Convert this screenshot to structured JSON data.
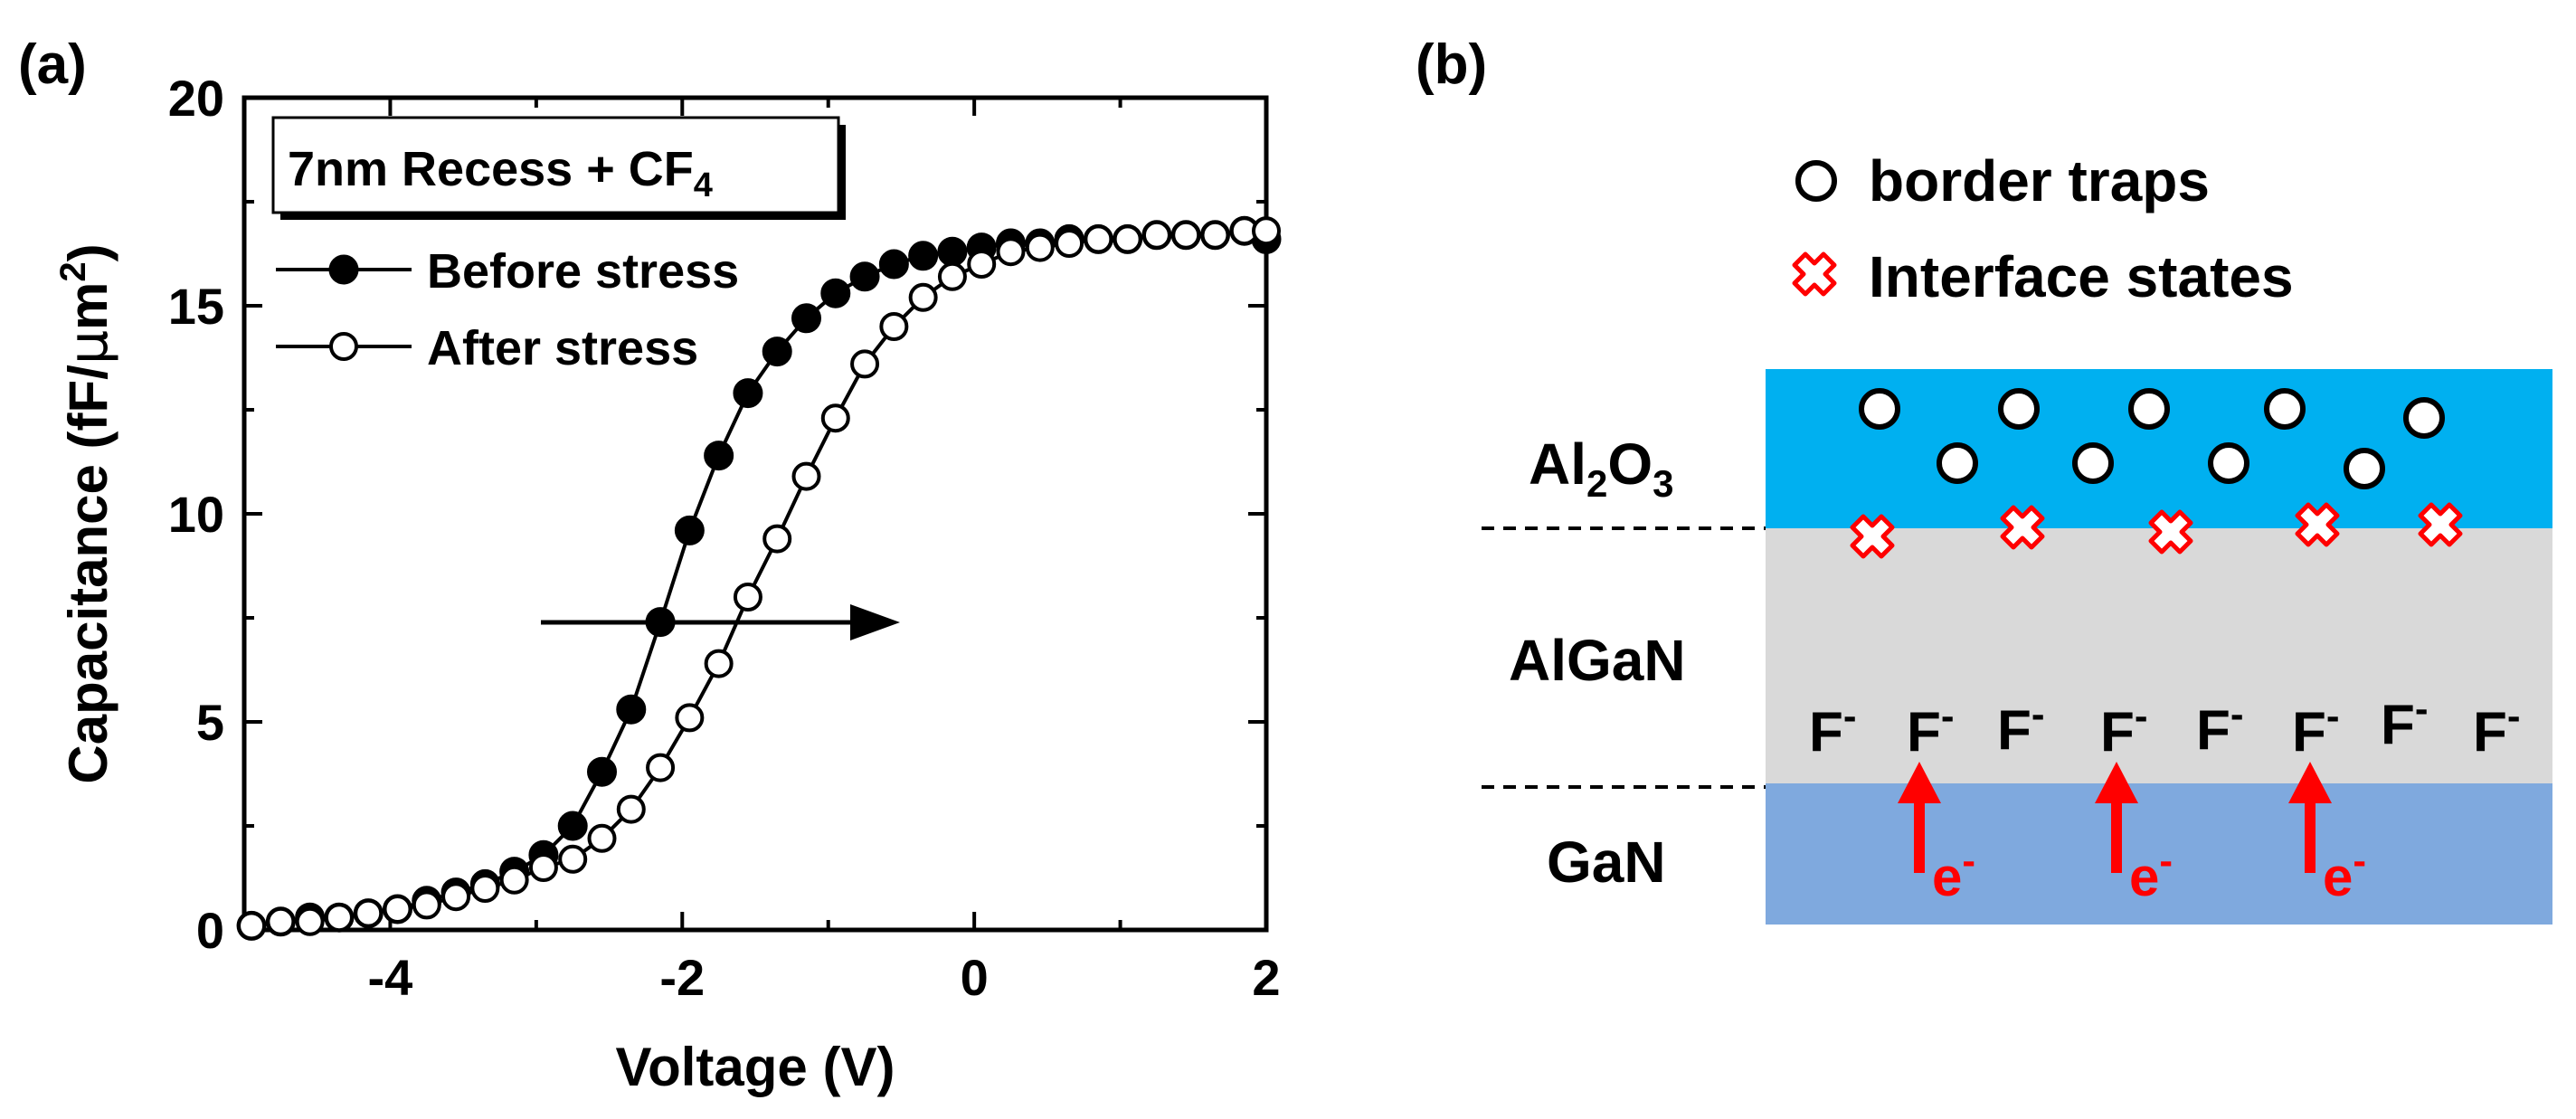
{
  "panel_a": {
    "label": "(a)",
    "legend_box": {
      "text": "7nm Recess   + CF",
      "subscript": "4"
    },
    "arrow_direction": "right"
  },
  "panel_b": {
    "label": "(b)",
    "legend": {
      "border_traps": "border traps",
      "interface_states": "Interface states"
    },
    "layers": {
      "al2o3": {
        "name_parts": [
          "Al",
          "2",
          "O",
          "3"
        ],
        "color": "#00b0f0"
      },
      "algan": {
        "name": "AlGaN",
        "color": "#d9d9d9"
      },
      "gan": {
        "name": "GaN",
        "color": "#7fa9de"
      }
    },
    "fluorine_label": "F",
    "fluorine_charge": "-",
    "electron_label": "e",
    "electron_charge": "-",
    "fluorine_count": 8,
    "electron_count": 3,
    "border_trap_count": 9,
    "interface_state_count": 5,
    "accent_red": "#ff0000"
  },
  "chart_data": {
    "type": "line",
    "title": "",
    "xlabel": "Voltage (V)",
    "ylabel_parts": {
      "main": "Capacitance (fF/",
      "mu": "μ",
      "unit": "m",
      "sup": "2",
      "close": ")"
    },
    "xlim": [
      -5,
      2
    ],
    "ylim": [
      0,
      20
    ],
    "xticks": [
      -4,
      -2,
      0,
      2
    ],
    "yticks": [
      0,
      5,
      10,
      15,
      20
    ],
    "legend_position": "top-left",
    "series": [
      {
        "name": "Before stress",
        "marker": "filled-circle",
        "x": [
          -4.95,
          -4.75,
          -4.55,
          -4.35,
          -4.15,
          -3.95,
          -3.75,
          -3.55,
          -3.35,
          -3.15,
          -2.95,
          -2.75,
          -2.55,
          -2.35,
          -2.15,
          -1.95,
          -1.75,
          -1.55,
          -1.35,
          -1.15,
          -0.95,
          -0.75,
          -0.55,
          -0.35,
          -0.15,
          0.05,
          0.25,
          0.45,
          0.65,
          0.85,
          1.05,
          1.25,
          1.45,
          1.65,
          1.85,
          2.0
        ],
        "y": [
          0.1,
          0.2,
          0.3,
          0.3,
          0.4,
          0.5,
          0.7,
          0.9,
          1.1,
          1.4,
          1.8,
          2.5,
          3.8,
          5.3,
          7.4,
          9.6,
          11.4,
          12.9,
          13.9,
          14.7,
          15.3,
          15.7,
          16.0,
          16.2,
          16.3,
          16.4,
          16.5,
          16.5,
          16.6,
          16.6,
          16.6,
          16.7,
          16.7,
          16.7,
          16.8,
          16.6
        ]
      },
      {
        "name": "After stress",
        "marker": "open-circle",
        "x": [
          -4.95,
          -4.75,
          -4.55,
          -4.35,
          -4.15,
          -3.95,
          -3.75,
          -3.55,
          -3.35,
          -3.15,
          -2.95,
          -2.75,
          -2.55,
          -2.35,
          -2.15,
          -1.95,
          -1.75,
          -1.55,
          -1.35,
          -1.15,
          -0.95,
          -0.75,
          -0.55,
          -0.35,
          -0.15,
          0.05,
          0.25,
          0.45,
          0.65,
          0.85,
          1.05,
          1.25,
          1.45,
          1.65,
          1.85,
          2.0
        ],
        "y": [
          0.1,
          0.2,
          0.2,
          0.3,
          0.4,
          0.5,
          0.6,
          0.8,
          1.0,
          1.2,
          1.5,
          1.7,
          2.2,
          2.9,
          3.9,
          5.1,
          6.4,
          8.0,
          9.4,
          10.9,
          12.3,
          13.6,
          14.5,
          15.2,
          15.7,
          16.0,
          16.3,
          16.4,
          16.5,
          16.6,
          16.6,
          16.7,
          16.7,
          16.7,
          16.8,
          16.8
        ]
      }
    ]
  }
}
